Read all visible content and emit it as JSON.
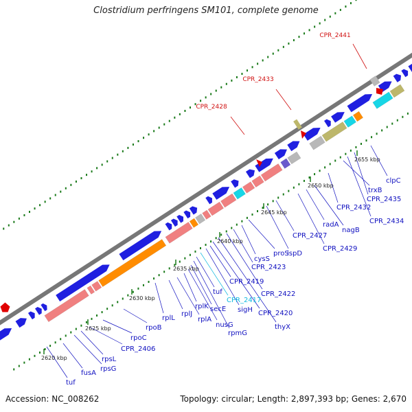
{
  "title": "Clostridium perfringens SM101, complete genome",
  "footer": {
    "accession": "Accession: NC_008262",
    "summary": "Topology: circular; Length: 2,897,393 bp; Genes: 2,670"
  },
  "colors": {
    "backbone": "#777777",
    "cds_forward": "#1f1fe0",
    "rrna": "#f08080",
    "trna": "#ff8c00",
    "misc_feature": "#bdb76b",
    "gray_feature": "#b8b8b8",
    "cyan_feature": "#17d6e6",
    "purple_feature": "#6a5acd",
    "highlight": "#e00000",
    "label_blue": "#1010c0",
    "label_cyan": "#10b8e0",
    "label_red": "#d01010",
    "tick_green": "#1a7a1a"
  },
  "ticks": [
    "2620 kbp",
    "2625 kbp",
    "2630 kbp",
    "2635 kbp",
    "2640 kbp",
    "2645 kbp",
    "2650 kbp",
    "2655 kbp"
  ],
  "gene_labels": [
    {
      "text": "tuf",
      "color": "blue"
    },
    {
      "text": "fusA",
      "color": "blue"
    },
    {
      "text": "rpsG",
      "color": "blue"
    },
    {
      "text": "rpsL",
      "color": "blue"
    },
    {
      "text": "CPR_2406",
      "color": "blue"
    },
    {
      "text": "rpoC",
      "color": "blue"
    },
    {
      "text": "rpoB",
      "color": "blue"
    },
    {
      "text": "rplL",
      "color": "blue"
    },
    {
      "text": "rplJ",
      "color": "blue"
    },
    {
      "text": "rplA",
      "color": "blue"
    },
    {
      "text": "rplK",
      "color": "blue"
    },
    {
      "text": "nusG",
      "color": "blue"
    },
    {
      "text": "secE",
      "color": "blue"
    },
    {
      "text": "rpmG",
      "color": "blue"
    },
    {
      "text": "tuf",
      "color": "blue"
    },
    {
      "text": "CPR_2417",
      "color": "cyan"
    },
    {
      "text": "sigH",
      "color": "blue"
    },
    {
      "text": "CPR_2419",
      "color": "blue"
    },
    {
      "text": "CPR_2420",
      "color": "blue"
    },
    {
      "text": "thyX",
      "color": "blue"
    },
    {
      "text": "CPR_2422",
      "color": "blue"
    },
    {
      "text": "CPR_2423",
      "color": "blue"
    },
    {
      "text": "cysS",
      "color": "blue"
    },
    {
      "text": "proS",
      "color": "blue"
    },
    {
      "text": "ispD",
      "color": "blue"
    },
    {
      "text": "CPR_2427",
      "color": "blue"
    },
    {
      "text": "CPR_2429",
      "color": "blue"
    },
    {
      "text": "radA",
      "color": "blue"
    },
    {
      "text": "nagB",
      "color": "blue"
    },
    {
      "text": "CPR_2432",
      "color": "blue"
    },
    {
      "text": "trxB",
      "color": "blue"
    },
    {
      "text": "CPR_2434",
      "color": "blue"
    },
    {
      "text": "CPR_2435",
      "color": "blue"
    },
    {
      "text": "clpC",
      "color": "blue"
    }
  ],
  "highlight_labels": [
    "CPR_2428",
    "CPR_2433",
    "CPR_2441"
  ]
}
